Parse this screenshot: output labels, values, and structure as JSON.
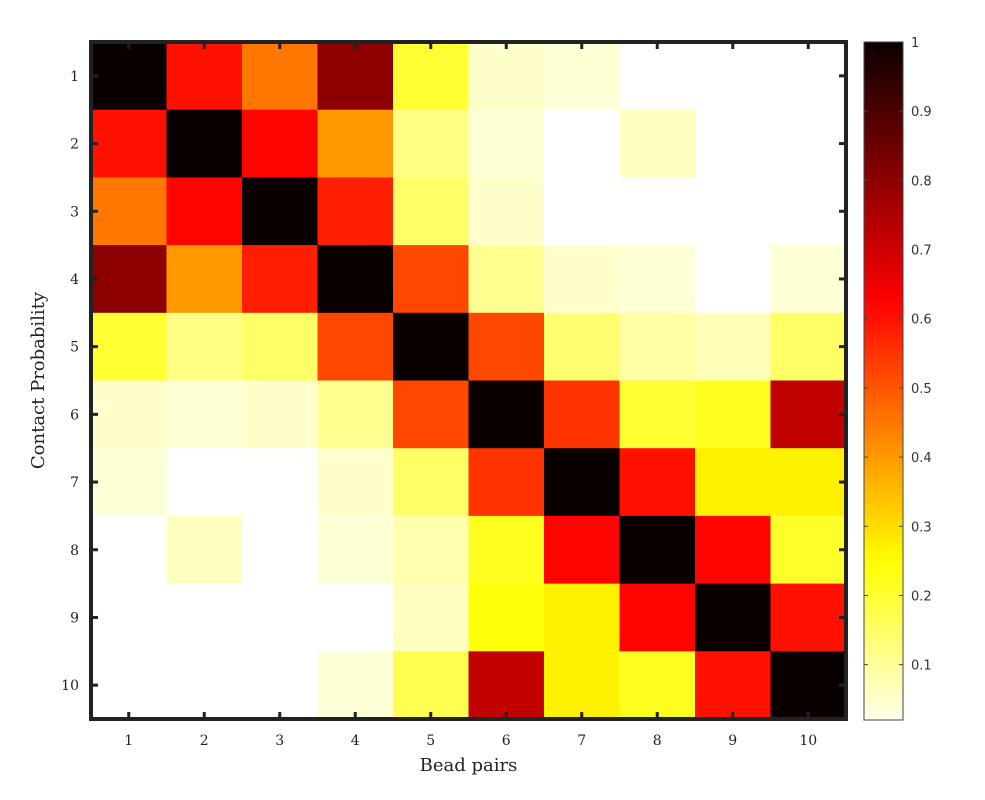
{
  "chart_data": {
    "type": "heatmap",
    "title": "",
    "xlabel": "Bead pairs",
    "ylabel": "Contact Probability",
    "x_categories": [
      "1",
      "2",
      "3",
      "4",
      "5",
      "6",
      "7",
      "8",
      "9",
      "10"
    ],
    "y_categories": [
      "1",
      "2",
      "3",
      "4",
      "5",
      "6",
      "7",
      "8",
      "9",
      "10"
    ],
    "colormap": "hot (reversed)",
    "colorbar": {
      "ticks": [
        "1",
        "0.9",
        "0.8",
        "0.7",
        "0.6",
        "0.5",
        "0.4",
        "0.3",
        "0.2",
        "0.1"
      ],
      "range": [
        0.02,
        1
      ]
    },
    "values": [
      [
        1.0,
        0.6,
        0.45,
        0.8,
        0.2,
        0.05,
        0.04,
        0.0,
        0.0,
        0.0
      ],
      [
        0.6,
        1.0,
        0.62,
        0.4,
        0.12,
        0.04,
        0.0,
        0.06,
        0.0,
        0.0
      ],
      [
        0.45,
        0.62,
        1.0,
        0.58,
        0.15,
        0.05,
        0.0,
        0.0,
        0.0,
        0.0
      ],
      [
        0.8,
        0.4,
        0.58,
        1.0,
        0.52,
        0.11,
        0.05,
        0.04,
        0.0,
        0.04
      ],
      [
        0.2,
        0.12,
        0.15,
        0.52,
        1.0,
        0.52,
        0.14,
        0.09,
        0.07,
        0.15
      ],
      [
        0.05,
        0.04,
        0.05,
        0.11,
        0.52,
        1.0,
        0.55,
        0.2,
        0.22,
        0.72
      ],
      [
        0.04,
        0.0,
        0.0,
        0.05,
        0.15,
        0.55,
        1.0,
        0.6,
        0.27,
        0.27
      ],
      [
        0.0,
        0.06,
        0.0,
        0.04,
        0.08,
        0.22,
        0.62,
        1.0,
        0.62,
        0.21
      ],
      [
        0.0,
        0.0,
        0.0,
        0.0,
        0.06,
        0.24,
        0.27,
        0.62,
        1.0,
        0.6
      ],
      [
        0.0,
        0.0,
        0.0,
        0.04,
        0.17,
        0.72,
        0.27,
        0.22,
        0.6,
        1.0
      ]
    ]
  }
}
